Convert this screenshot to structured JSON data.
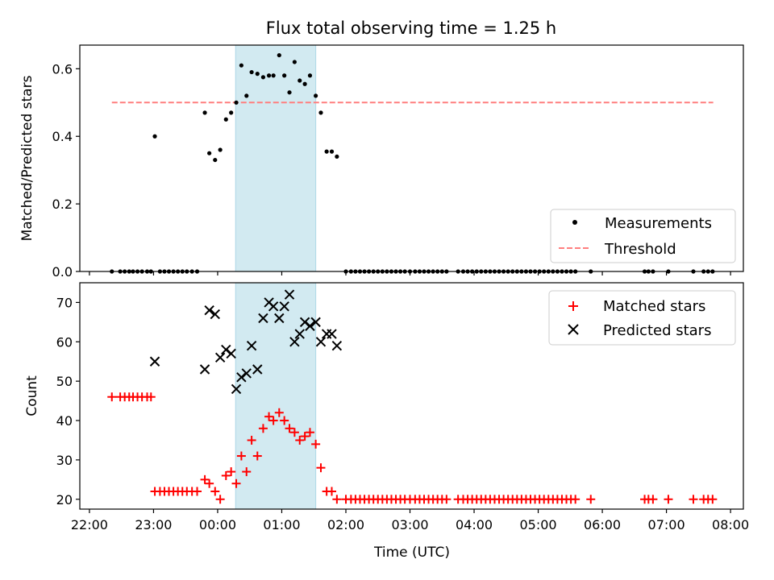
{
  "figure": {
    "title": "Flux total observing time = 1.25 h",
    "xlabel": "Time (UTC)"
  },
  "colors": {
    "background": "#ffffff",
    "highlight_span": "#add8e6",
    "measurements": "#000000",
    "threshold": "#ff7f7f",
    "matched": "#ff0000",
    "predicted": "#000000"
  },
  "chart_data": [
    {
      "type": "scatter",
      "panel": "top",
      "ylabel": "Matched/Predicted stars",
      "xlabel": "",
      "x_unit": "hours since 22:00 UTC",
      "xlim": [
        -0.15,
        10.2
      ],
      "ylim": [
        0.0,
        0.67
      ],
      "x_ticks": [
        0,
        1,
        2,
        3,
        4,
        5,
        6,
        7,
        8,
        9,
        10
      ],
      "y_ticks": [
        0.0,
        0.2,
        0.4,
        0.6
      ],
      "y_tick_labels": [
        "0.0",
        "0.2",
        "0.4",
        "0.6"
      ],
      "grid": false,
      "legend_position": "lower right",
      "shaded_span": {
        "x_start": 2.28,
        "x_end": 3.53
      },
      "threshold": {
        "name": "Threshold",
        "y": 0.5,
        "x_start": 0.35,
        "x_end": 9.73,
        "style": "dashed"
      },
      "series": [
        {
          "name": "Measurements",
          "marker": "dot",
          "points": [
            [
              0.35,
              0
            ],
            [
              0.48,
              0
            ],
            [
              0.55,
              0
            ],
            [
              0.62,
              0
            ],
            [
              0.68,
              0
            ],
            [
              0.75,
              0
            ],
            [
              0.82,
              0
            ],
            [
              0.9,
              0
            ],
            [
              0.96,
              0
            ],
            [
              1.02,
              0.4
            ],
            [
              1.1,
              0
            ],
            [
              1.17,
              0
            ],
            [
              1.24,
              0
            ],
            [
              1.31,
              0
            ],
            [
              1.38,
              0
            ],
            [
              1.45,
              0
            ],
            [
              1.52,
              0
            ],
            [
              1.6,
              0
            ],
            [
              1.68,
              0
            ],
            [
              1.8,
              0.47
            ],
            [
              1.87,
              0.35
            ],
            [
              1.96,
              0.33
            ],
            [
              2.04,
              0.36
            ],
            [
              2.13,
              0.45
            ],
            [
              2.21,
              0.47
            ],
            [
              2.29,
              0.5
            ],
            [
              2.37,
              0.61
            ],
            [
              2.45,
              0.52
            ],
            [
              2.53,
              0.59
            ],
            [
              2.62,
              0.585
            ],
            [
              2.71,
              0.575
            ],
            [
              2.8,
              0.58
            ],
            [
              2.87,
              0.58
            ],
            [
              2.96,
              0.64
            ],
            [
              3.04,
              0.58
            ],
            [
              3.12,
              0.53
            ],
            [
              3.2,
              0.62
            ],
            [
              3.28,
              0.565
            ],
            [
              3.36,
              0.555
            ],
            [
              3.44,
              0.58
            ],
            [
              3.53,
              0.52
            ],
            [
              3.61,
              0.47
            ],
            [
              3.7,
              0.355
            ],
            [
              3.78,
              0.355
            ],
            [
              3.86,
              0.34
            ],
            [
              4.0,
              0
            ],
            [
              4.08,
              0
            ],
            [
              4.15,
              0
            ],
            [
              4.22,
              0
            ],
            [
              4.29,
              0
            ],
            [
              4.36,
              0
            ],
            [
              4.43,
              0
            ],
            [
              4.5,
              0
            ],
            [
              4.57,
              0
            ],
            [
              4.64,
              0
            ],
            [
              4.71,
              0
            ],
            [
              4.78,
              0
            ],
            [
              4.85,
              0
            ],
            [
              4.92,
              0
            ],
            [
              5.0,
              0
            ],
            [
              5.08,
              0
            ],
            [
              5.15,
              0
            ],
            [
              5.22,
              0
            ],
            [
              5.29,
              0
            ],
            [
              5.36,
              0
            ],
            [
              5.43,
              0
            ],
            [
              5.5,
              0
            ],
            [
              5.57,
              0
            ],
            [
              5.75,
              0
            ],
            [
              5.83,
              0
            ],
            [
              5.9,
              0
            ],
            [
              5.97,
              0
            ],
            [
              6.04,
              0
            ],
            [
              6.11,
              0
            ],
            [
              6.18,
              0
            ],
            [
              6.25,
              0
            ],
            [
              6.32,
              0
            ],
            [
              6.39,
              0
            ],
            [
              6.46,
              0
            ],
            [
              6.53,
              0
            ],
            [
              6.6,
              0
            ],
            [
              6.67,
              0
            ],
            [
              6.74,
              0
            ],
            [
              6.81,
              0
            ],
            [
              6.88,
              0
            ],
            [
              6.95,
              0
            ],
            [
              7.02,
              0
            ],
            [
              7.09,
              0
            ],
            [
              7.16,
              0
            ],
            [
              7.23,
              0
            ],
            [
              7.3,
              0
            ],
            [
              7.37,
              0
            ],
            [
              7.44,
              0
            ],
            [
              7.51,
              0
            ],
            [
              7.58,
              0
            ],
            [
              7.82,
              0
            ],
            [
              8.66,
              0
            ],
            [
              8.72,
              0
            ],
            [
              8.79,
              0
            ],
            [
              9.03,
              0
            ],
            [
              9.42,
              0
            ],
            [
              9.58,
              0
            ],
            [
              9.65,
              0
            ],
            [
              9.72,
              0
            ]
          ]
        }
      ]
    },
    {
      "type": "scatter",
      "panel": "bottom",
      "ylabel": "Count",
      "xlabel": "Time (UTC)",
      "x_unit": "hours since 22:00 UTC",
      "xlim": [
        -0.15,
        10.2
      ],
      "ylim": [
        17.5,
        75
      ],
      "x_ticks": [
        0,
        1,
        2,
        3,
        4,
        5,
        6,
        7,
        8,
        9,
        10
      ],
      "x_tick_labels": [
        "22:00",
        "23:00",
        "00:00",
        "01:00",
        "02:00",
        "03:00",
        "04:00",
        "05:00",
        "06:00",
        "07:00",
        "08:00"
      ],
      "y_ticks": [
        20,
        30,
        40,
        50,
        60,
        70
      ],
      "y_tick_labels": [
        "20",
        "30",
        "40",
        "50",
        "60",
        "70"
      ],
      "grid": false,
      "legend_position": "upper right",
      "shaded_span": {
        "x_start": 2.28,
        "x_end": 3.53
      },
      "series": [
        {
          "name": "Matched stars",
          "marker": "plus",
          "points": [
            [
              0.35,
              46
            ],
            [
              0.48,
              46
            ],
            [
              0.55,
              46
            ],
            [
              0.62,
              46
            ],
            [
              0.68,
              46
            ],
            [
              0.75,
              46
            ],
            [
              0.82,
              46
            ],
            [
              0.9,
              46
            ],
            [
              0.96,
              46
            ],
            [
              1.02,
              22
            ],
            [
              1.1,
              22
            ],
            [
              1.17,
              22
            ],
            [
              1.24,
              22
            ],
            [
              1.31,
              22
            ],
            [
              1.38,
              22
            ],
            [
              1.45,
              22
            ],
            [
              1.52,
              22
            ],
            [
              1.6,
              22
            ],
            [
              1.68,
              22
            ],
            [
              1.8,
              25
            ],
            [
              1.87,
              24
            ],
            [
              1.96,
              22
            ],
            [
              2.04,
              20
            ],
            [
              2.13,
              26
            ],
            [
              2.21,
              27
            ],
            [
              2.29,
              24
            ],
            [
              2.37,
              31
            ],
            [
              2.45,
              27
            ],
            [
              2.53,
              35
            ],
            [
              2.62,
              31
            ],
            [
              2.71,
              38
            ],
            [
              2.8,
              41
            ],
            [
              2.87,
              40
            ],
            [
              2.96,
              42
            ],
            [
              3.04,
              40
            ],
            [
              3.12,
              38
            ],
            [
              3.2,
              37
            ],
            [
              3.28,
              35
            ],
            [
              3.36,
              36
            ],
            [
              3.44,
              37
            ],
            [
              3.53,
              34
            ],
            [
              3.61,
              28
            ],
            [
              3.7,
              22
            ],
            [
              3.78,
              22
            ],
            [
              3.86,
              20
            ],
            [
              4.0,
              20
            ],
            [
              4.08,
              20
            ],
            [
              4.15,
              20
            ],
            [
              4.22,
              20
            ],
            [
              4.29,
              20
            ],
            [
              4.36,
              20
            ],
            [
              4.43,
              20
            ],
            [
              4.5,
              20
            ],
            [
              4.57,
              20
            ],
            [
              4.64,
              20
            ],
            [
              4.71,
              20
            ],
            [
              4.78,
              20
            ],
            [
              4.85,
              20
            ],
            [
              4.92,
              20
            ],
            [
              5.0,
              20
            ],
            [
              5.08,
              20
            ],
            [
              5.15,
              20
            ],
            [
              5.22,
              20
            ],
            [
              5.29,
              20
            ],
            [
              5.36,
              20
            ],
            [
              5.43,
              20
            ],
            [
              5.5,
              20
            ],
            [
              5.57,
              20
            ],
            [
              5.75,
              20
            ],
            [
              5.83,
              20
            ],
            [
              5.9,
              20
            ],
            [
              5.97,
              20
            ],
            [
              6.04,
              20
            ],
            [
              6.11,
              20
            ],
            [
              6.18,
              20
            ],
            [
              6.25,
              20
            ],
            [
              6.32,
              20
            ],
            [
              6.39,
              20
            ],
            [
              6.46,
              20
            ],
            [
              6.53,
              20
            ],
            [
              6.6,
              20
            ],
            [
              6.67,
              20
            ],
            [
              6.74,
              20
            ],
            [
              6.81,
              20
            ],
            [
              6.88,
              20
            ],
            [
              6.95,
              20
            ],
            [
              7.02,
              20
            ],
            [
              7.09,
              20
            ],
            [
              7.16,
              20
            ],
            [
              7.23,
              20
            ],
            [
              7.3,
              20
            ],
            [
              7.37,
              20
            ],
            [
              7.44,
              20
            ],
            [
              7.51,
              20
            ],
            [
              7.58,
              20
            ],
            [
              7.82,
              20
            ],
            [
              8.66,
              20
            ],
            [
              8.72,
              20
            ],
            [
              8.79,
              20
            ],
            [
              9.03,
              20
            ],
            [
              9.42,
              20
            ],
            [
              9.58,
              20
            ],
            [
              9.65,
              20
            ],
            [
              9.72,
              20
            ]
          ]
        },
        {
          "name": "Predicted stars",
          "marker": "x",
          "points": [
            [
              1.02,
              55
            ],
            [
              1.8,
              53
            ],
            [
              1.87,
              68
            ],
            [
              1.96,
              67
            ],
            [
              2.04,
              56
            ],
            [
              2.13,
              58
            ],
            [
              2.21,
              57
            ],
            [
              2.29,
              48
            ],
            [
              2.37,
              51
            ],
            [
              2.45,
              52
            ],
            [
              2.53,
              59
            ],
            [
              2.62,
              53
            ],
            [
              2.71,
              66
            ],
            [
              2.8,
              70
            ],
            [
              2.87,
              69
            ],
            [
              2.96,
              66
            ],
            [
              3.04,
              69
            ],
            [
              3.12,
              72
            ],
            [
              3.2,
              60
            ],
            [
              3.28,
              62
            ],
            [
              3.36,
              65
            ],
            [
              3.44,
              64
            ],
            [
              3.53,
              65
            ],
            [
              3.61,
              60
            ],
            [
              3.7,
              62
            ],
            [
              3.78,
              62
            ],
            [
              3.86,
              59
            ]
          ]
        }
      ]
    }
  ]
}
